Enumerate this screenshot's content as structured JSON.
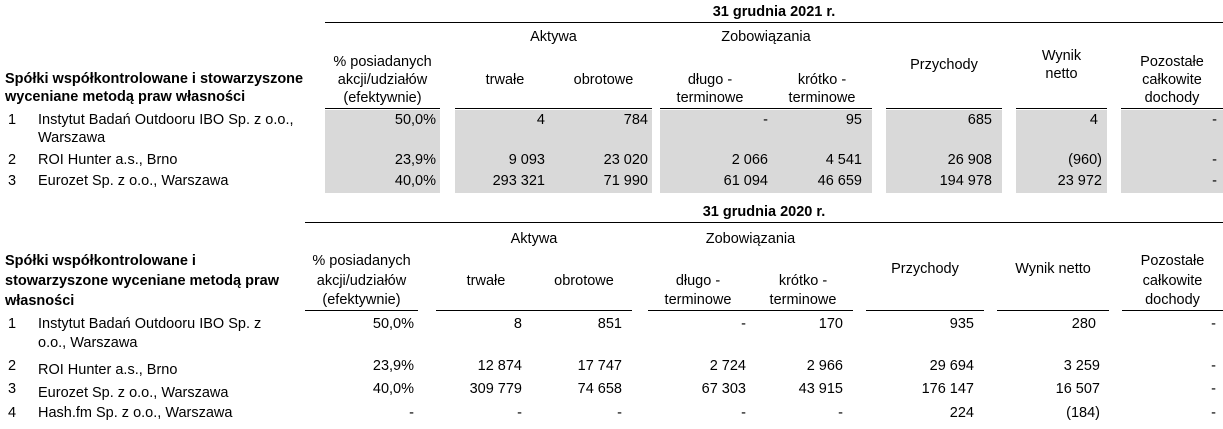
{
  "t2021": {
    "year_title": "31 grudnia 2021 r.",
    "row_title_line1": "Spółki współkontrolowane i stowarzyszone",
    "row_title_line2": "wyceniane metodą praw własności",
    "h_pct_1": "% posiadanych",
    "h_pct_2": "akcji/udziałów",
    "h_pct_3": "(efektywnie)",
    "h_aktywa": "Aktywa",
    "h_trwale": "trwałe",
    "h_obrotowe": "obrotowe",
    "h_zobowiazania": "Zobowiązania",
    "h_dlugo_1": "długo -",
    "h_dlugo_2": "terminowe",
    "h_krotko_1": "krótko -",
    "h_krotko_2": "terminowe",
    "h_przychody": "Przychody",
    "h_wynik_1": "Wynik",
    "h_wynik_2": "netto",
    "h_pozostale_1": "Pozostałe",
    "h_pozostale_2": "całkowite",
    "h_pozostale_3": "dochody",
    "rows": [
      {
        "no": "1",
        "name1": "Instytut Badań Outdooru IBO Sp. z o.o.,",
        "name2": "Warszawa",
        "pct": "50,0%",
        "trwale": "4",
        "obrotowe": "784",
        "dlugo": "-",
        "krotko": "95",
        "przychody": "685",
        "wynik": "4",
        "pozostale": "-"
      },
      {
        "no": "2",
        "name1": "ROI Hunter a.s., Brno",
        "name2": "",
        "pct": "23,9%",
        "trwale": "9 093",
        "obrotowe": "23 020",
        "dlugo": "2 066",
        "krotko": "4 541",
        "przychody": "26 908",
        "wynik": "(960)",
        "pozostale": "-"
      },
      {
        "no": "3",
        "name1": "Eurozet Sp. z o.o., Warszawa",
        "name2": "",
        "pct": "40,0%",
        "trwale": "293 321",
        "obrotowe": "71 990",
        "dlugo": "61 094",
        "krotko": "46 659",
        "przychody": "194 978",
        "wynik": "23 972",
        "pozostale": "-"
      }
    ]
  },
  "t2020": {
    "year_title": "31 grudnia 2020 r.",
    "row_title_line1": "Spółki współkontrolowane i",
    "row_title_line2": "stowarzyszone wyceniane metodą praw",
    "row_title_line3": "własności",
    "h_pct_1": "% posiadanych",
    "h_pct_2": "akcji/udziałów",
    "h_pct_3": "(efektywnie)",
    "h_aktywa": "Aktywa",
    "h_trwale": "trwałe",
    "h_obrotowe": "obrotowe",
    "h_zobowiazania": "Zobowiązania",
    "h_dlugo_1": "długo -",
    "h_dlugo_2": "terminowe",
    "h_krotko_1": "krótko -",
    "h_krotko_2": "terminowe",
    "h_przychody": "Przychody",
    "h_wynik": "Wynik netto",
    "h_pozostale_1": "Pozostałe",
    "h_pozostale_2": "całkowite",
    "h_pozostale_3": "dochody",
    "rows": [
      {
        "no": "1",
        "name1": "Instytut Badań Outdooru IBO Sp. z",
        "name2": "o.o., Warszawa",
        "pct": "50,0%",
        "trwale": "8",
        "obrotowe": "851",
        "dlugo": "-",
        "krotko": "170",
        "przychody": "935",
        "wynik": "280",
        "pozostale": "-"
      },
      {
        "no": "2",
        "name1": "ROI Hunter a.s., Brno",
        "name2": "",
        "pct": "23,9%",
        "trwale": "12 874",
        "obrotowe": "17 747",
        "dlugo": "2 724",
        "krotko": "2 966",
        "przychody": "29 694",
        "wynik": "3 259",
        "pozostale": "-"
      },
      {
        "no": "3",
        "name1": "Eurozet Sp. z o.o., Warszawa",
        "name2": "",
        "pct": "40,0%",
        "trwale": "309 779",
        "obrotowe": "74 658",
        "dlugo": "67 303",
        "krotko": "43 915",
        "przychody": "176 147",
        "wynik": "16 507",
        "pozostale": "-"
      },
      {
        "no": "4",
        "name1": "Hash.fm Sp. z o.o., Warszawa",
        "name2": "",
        "pct": "-",
        "trwale": "-",
        "obrotowe": "-",
        "dlugo": "-",
        "krotko": "-",
        "przychody": "224",
        "wynik": "(184)",
        "pozostale": "-"
      }
    ]
  }
}
